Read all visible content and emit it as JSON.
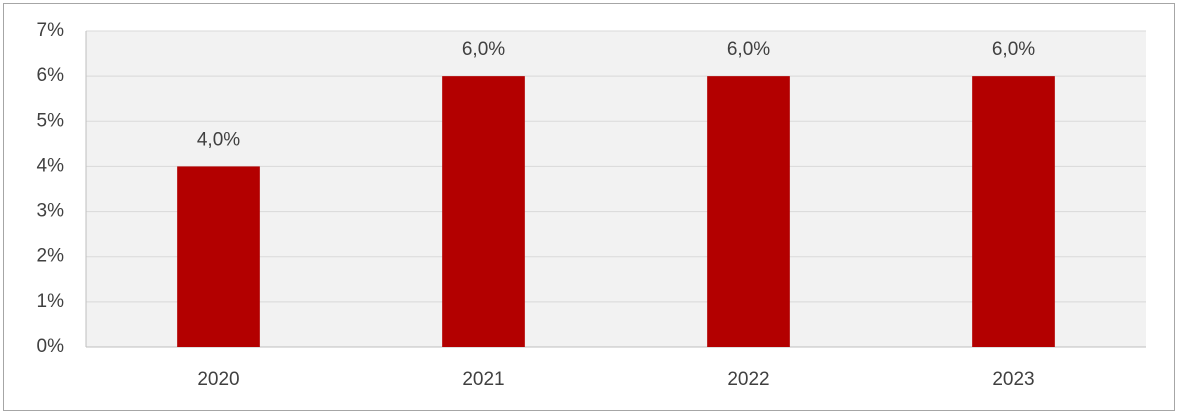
{
  "chart_data": {
    "type": "bar",
    "categories": [
      "2020",
      "2021",
      "2022",
      "2023"
    ],
    "values": [
      4,
      6,
      6,
      6
    ],
    "value_labels": [
      "4,0%",
      "6,0%",
      "6,0%",
      "6,0%"
    ],
    "color": "#b30000",
    "ylim": [
      0,
      7
    ],
    "yticks": [
      {
        "value": 0,
        "label": "0%"
      },
      {
        "value": 1,
        "label": "1%"
      },
      {
        "value": 2,
        "label": "2%"
      },
      {
        "value": 3,
        "label": "3%"
      },
      {
        "value": 4,
        "label": "4%"
      },
      {
        "value": 5,
        "label": "5%"
      },
      {
        "value": 6,
        "label": "6%"
      },
      {
        "value": 7,
        "label": "7%"
      }
    ],
    "grid": true
  }
}
